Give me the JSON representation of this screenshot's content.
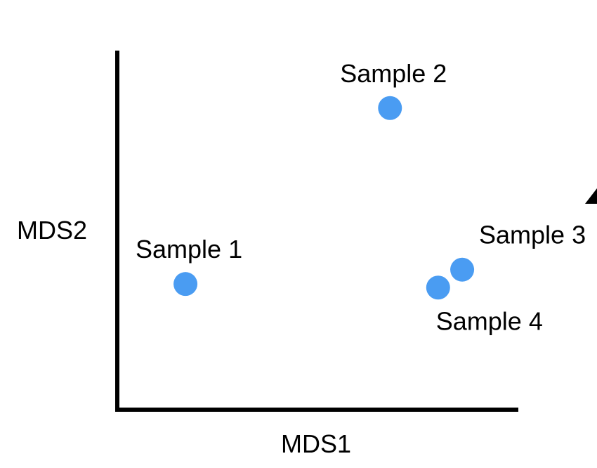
{
  "chart_data": {
    "type": "scatter",
    "title": "",
    "xlabel": "MDS1",
    "ylabel": "MDS2",
    "xlim": [
      0,
      10
    ],
    "ylim": [
      0,
      10
    ],
    "grid": false,
    "point_color": "#4a9cf2",
    "points": [
      {
        "label": "Sample 1",
        "x": 1.7,
        "y": 3.5,
        "label_position": "above"
      },
      {
        "label": "Sample 2",
        "x": 6.8,
        "y": 8.4,
        "label_position": "above"
      },
      {
        "label": "Sample 3",
        "x": 8.6,
        "y": 3.9,
        "label_position": "above-right"
      },
      {
        "label": "Sample 4",
        "x": 8.0,
        "y": 3.4,
        "label_position": "below-right"
      }
    ]
  }
}
